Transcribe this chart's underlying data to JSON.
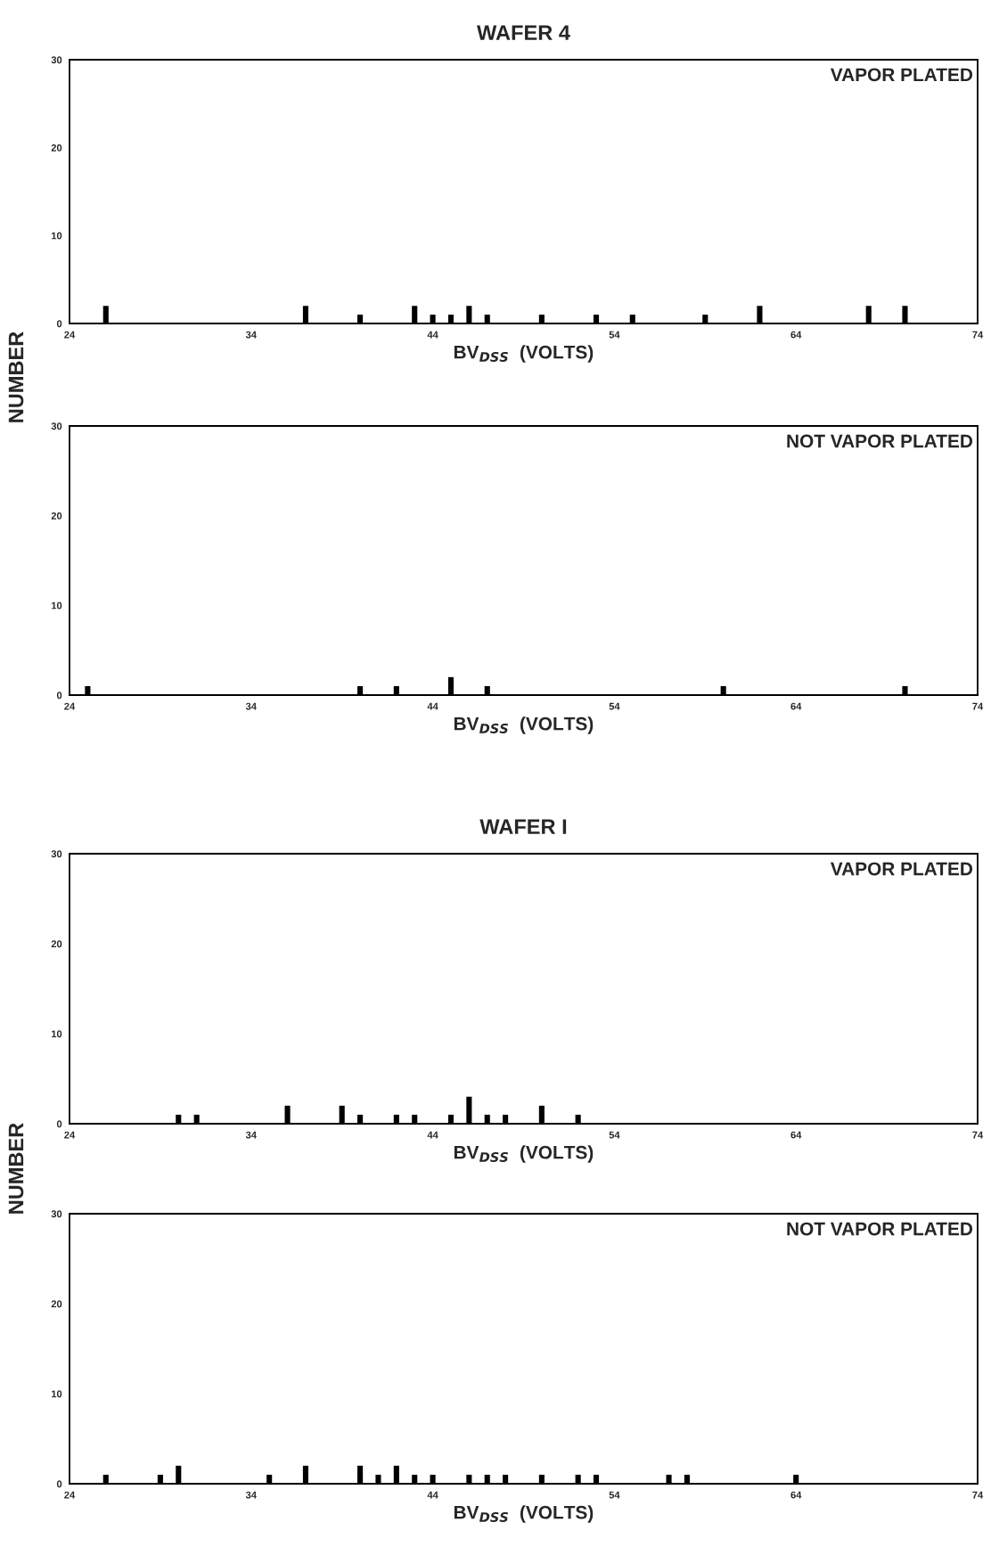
{
  "chart_data": [
    {
      "type": "bar",
      "title": "WAFER 4",
      "xlabel": "BV$_{DSS}$  (VOLTS)",
      "ylabel": "NUMBER",
      "annotations": [
        "VAPOR PLATED"
      ],
      "color": "#000000",
      "x": [
        26,
        37,
        40,
        43,
        44,
        45,
        46,
        47,
        50,
        53,
        55,
        59,
        62,
        68,
        70
      ],
      "values": [
        2,
        2,
        1,
        2,
        1,
        1,
        2,
        1,
        1,
        1,
        1,
        1,
        2,
        2,
        2
      ],
      "xlim": [
        24,
        74
      ],
      "xticks": [
        24,
        34,
        44,
        54,
        64,
        74
      ],
      "ylim": [
        0,
        30
      ],
      "yticks": [
        0,
        10,
        20,
        30
      ]
    },
    {
      "type": "bar",
      "xlabel": "BV$_{DSS}$  (VOLTS)",
      "annotations": [
        "NOT VAPOR PLATED"
      ],
      "color": "#000000",
      "x": [
        25,
        40,
        42,
        45,
        47,
        60,
        70
      ],
      "values": [
        1,
        1,
        1,
        2,
        1,
        1,
        1
      ],
      "xlim": [
        24,
        74
      ],
      "xticks": [
        24,
        34,
        44,
        54,
        64,
        74
      ],
      "ylim": [
        0,
        30
      ],
      "yticks": [
        0,
        10,
        20,
        30
      ]
    },
    {
      "type": "bar",
      "title": "WAFER I",
      "xlabel": "BV$_{DSS}$  (VOLTS)",
      "ylabel": "NUMBER",
      "annotations": [
        "VAPOR PLATED"
      ],
      "color": "#000000",
      "x": [
        30,
        31,
        36,
        39,
        40,
        42,
        43,
        45,
        46,
        47,
        48,
        50,
        52
      ],
      "values": [
        1,
        1,
        2,
        2,
        1,
        1,
        1,
        1,
        3,
        1,
        1,
        2,
        1
      ],
      "xlim": [
        24,
        74
      ],
      "xticks": [
        24,
        34,
        44,
        54,
        64,
        74
      ],
      "ylim": [
        0,
        30
      ],
      "yticks": [
        0,
        10,
        20,
        30
      ]
    },
    {
      "type": "bar",
      "xlabel": "BV$_{DSS}$  (VOLTS)",
      "annotations": [
        "NOT VAPOR PLATED"
      ],
      "color": "#000000",
      "x": [
        26,
        29,
        30,
        35,
        37,
        40,
        41,
        42,
        43,
        44,
        46,
        47,
        48,
        50,
        52,
        53,
        57,
        58,
        64
      ],
      "values": [
        1,
        1,
        2,
        1,
        2,
        2,
        1,
        2,
        1,
        1,
        1,
        1,
        1,
        1,
        1,
        1,
        1,
        1,
        1
      ],
      "xlim": [
        24,
        74
      ],
      "xticks": [
        24,
        34,
        44,
        54,
        64,
        74
      ],
      "ylim": [
        0,
        30
      ],
      "yticks": [
        0,
        10,
        20,
        30
      ]
    }
  ]
}
